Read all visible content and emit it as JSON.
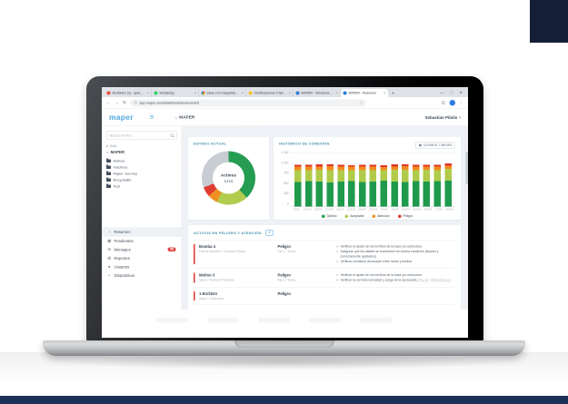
{
  "page": {
    "corner_accent_color": "#141f37",
    "footer_bar_color": "#1d3056",
    "watermark": "Activar Windows"
  },
  "browser": {
    "tabs": [
      {
        "title": "Recibidos (2) - aplicació…",
        "icon": "gmail-icon",
        "color": "#ea4335"
      },
      {
        "title": "WhatsApp",
        "icon": "whatsapp-icon",
        "color": "#25d366"
      },
      {
        "title": "Ideas con maquetas - Go…",
        "icon": "photos-icon",
        "color": "#fbbc05"
      },
      {
        "title": "modificaciones Trípticos…",
        "icon": "folder-icon",
        "color": "#f7c31e"
      },
      {
        "title": "MAPER - Introducción/Inici…",
        "icon": "maper-icon",
        "color": "#2e7cd6"
      },
      {
        "title": "MAPER - Resumen",
        "icon": "maper-icon",
        "color": "#2e7cd6",
        "active": true
      }
    ],
    "new_tab_label": "+",
    "window_controls": {
      "minimize": "—",
      "maximize": "□",
      "close": "✕"
    },
    "nav": {
      "back": "←",
      "forward": "→",
      "reload": "↻"
    },
    "url": "app.maper.cloud/dashboard/overview/9",
    "url_info_icon": "ⓘ",
    "bookmark_star": "☆",
    "menu_dots": "⋮"
  },
  "header": {
    "logo_text": "maper",
    "hamburger": "≡",
    "home_glyph": "⌂",
    "app_title": "MAPER",
    "user_name": "Sebastian Pilolis",
    "user_caret": "▾"
  },
  "sidebar": {
    "search_placeholder": "Buscar Activo...",
    "tree": {
      "root_caret": "▸",
      "root": "Aria",
      "org_glyph": "⌂",
      "org": "MAPER"
    },
    "folders": [
      "Activos",
      "Inactivos",
      "Maper Journey",
      "RecycleBin",
      "Test"
    ],
    "nav": [
      {
        "label": "Resumen",
        "icon": "summary-icon",
        "active": true
      },
      {
        "label": "Pendientes",
        "icon": "pending-icon"
      },
      {
        "label": "Mensajes",
        "icon": "messages-icon",
        "badge": "98"
      },
      {
        "label": "Reportes",
        "icon": "reports-icon"
      },
      {
        "label": "Usuarios",
        "icon": "users-icon"
      },
      {
        "label": "Dispositivos",
        "icon": "devices-icon"
      }
    ]
  },
  "estado": {
    "title": "ESTADO ACTUAL"
  },
  "historico": {
    "title": "HISTÓRICO DE CONEXIÓN",
    "range_button_label": "ÚLTIMOS 7 MESES",
    "calendar_glyph": "▦"
  },
  "activos": {
    "title": "ACTIVOS EN PELIGRO Y ATENCIÓN",
    "filter_glyph": "▼",
    "rows": [
      {
        "name": "Bomba 4",
        "location": "Faena Sandbox / Correas Planta",
        "status": "Peligro",
        "status_detail": "Eje 2 / Toma",
        "recommendations": [
          "Verificar el ajuste de los tornillos de la base y/o estructura",
          "Asegurar que los álabes se encuentren en buena condición (limpios y correctamente ajustados)",
          "Verificar condición del acople entre motor y turbina"
        ]
      },
      {
        "name": "Molino 3",
        "location": "Sand / Molinos Primarios",
        "status": "Peligro",
        "status_detail": "Eje 2 / Toma",
        "recommendations": [
          "Verificar el ajuste de los tornillos de la base y/o estructura",
          "Verificar la correcta velocidad y carga de la operación"
        ]
      },
      {
        "name": "1-B1/2024",
        "location": "Sand / Chancado",
        "status": "Peligro",
        "status_detail": "",
        "recommendations": []
      }
    ]
  },
  "chart_data": [
    {
      "type": "pie",
      "title": "ESTADO ACTUAL",
      "labels": [
        "Óptimo",
        "Aceptable",
        "Atención",
        "Peligro",
        "Sin conexión"
      ],
      "values": [
        540,
        270,
        85,
        85,
        436
      ],
      "colors": [
        "#1f9a4d",
        "#b0cb4a",
        "#f08c1e",
        "#e0362c",
        "#c6cbd2"
      ],
      "center_label": "Activos",
      "center_value": "1416"
    },
    {
      "type": "bar",
      "stacked": true,
      "title": "HISTÓRICO DE CONEXIÓN",
      "x": [
        "6/2/24",
        "13/2/24",
        "20/2/24",
        "27/2/24",
        "5/3/24",
        "12/3/24",
        "19/3/24",
        "26/3/24",
        "2/4/24",
        "9/4/24",
        "16/4/24",
        "23/4/24",
        "30/4/24",
        "7/5/24",
        "14/5/24"
      ],
      "series": [
        {
          "name": "Óptimo",
          "color": "#1f9a4d",
          "values": [
            565,
            580,
            570,
            555,
            575,
            585,
            560,
            570,
            590,
            575,
            565,
            580,
            570,
            585,
            595
          ]
        },
        {
          "name": "Aceptable",
          "color": "#b0cb4a",
          "values": [
            270,
            255,
            275,
            280,
            260,
            250,
            270,
            265,
            245,
            265,
            275,
            255,
            270,
            250,
            265
          ]
        },
        {
          "name": "Atención",
          "color": "#f08c1e",
          "values": [
            80,
            85,
            75,
            90,
            80,
            78,
            85,
            80,
            75,
            82,
            88,
            80,
            76,
            85,
            82
          ]
        },
        {
          "name": "Peligro",
          "color": "#e0362c",
          "values": [
            40,
            38,
            45,
            40,
            42,
            38,
            44,
            48,
            38,
            42,
            40,
            44,
            48,
            42,
            46
          ]
        }
      ],
      "ylim": [
        0,
        1250
      ],
      "yticks": [
        "1.250",
        "1.000",
        "750",
        "500",
        "250",
        "0"
      ],
      "grid": true,
      "legend_position": "bottom"
    }
  ]
}
